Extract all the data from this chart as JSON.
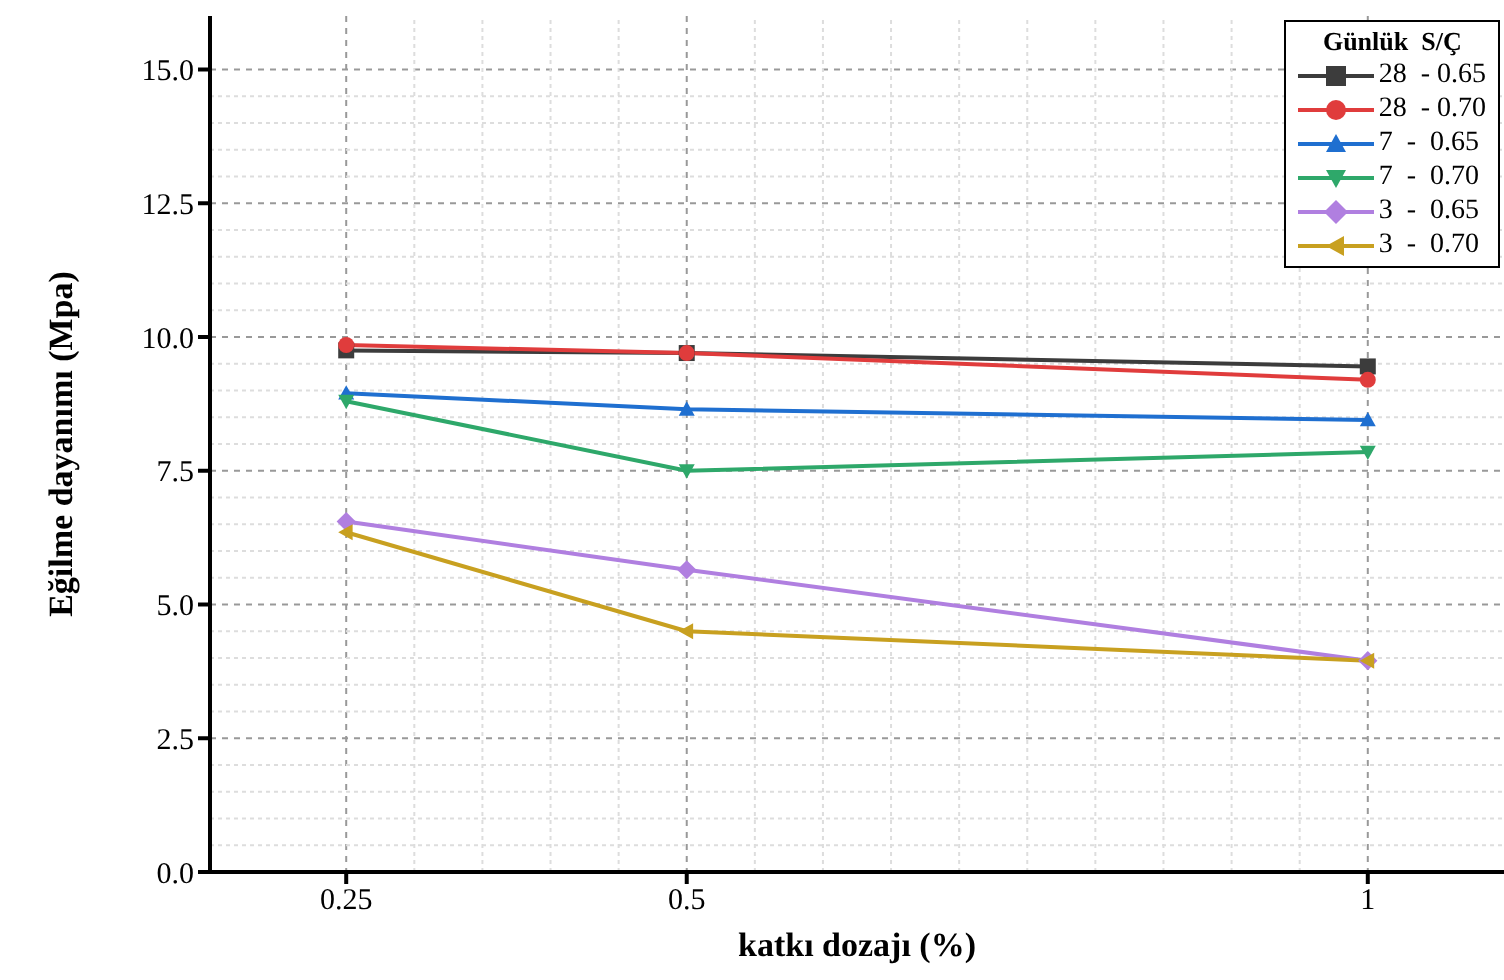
{
  "chart_data": {
    "type": "line",
    "xlabel": "katkı dozajı (%)",
    "ylabel": "Eğilme dayanımı (Mpa)",
    "legend_title": "Günlük  S/Ç",
    "x": [
      0.25,
      0.5,
      1
    ],
    "xlim": [
      0.15,
      1.1
    ],
    "xticks": [
      0.25,
      0.5,
      1
    ],
    "ylim": [
      0,
      16
    ],
    "yticks": [
      {
        "value": 0,
        "label": "0.0"
      },
      2.5,
      {
        "value": 5,
        "label": "5.0"
      },
      7.5,
      {
        "value": 10,
        "label": "10.0"
      },
      12.5,
      {
        "value": 15,
        "label": "15.0"
      }
    ],
    "grid": true,
    "legend": "top right",
    "line_style": "solid",
    "series": [
      {
        "name": "28  - 0.65",
        "color": "#3c3c3c",
        "marker": "square",
        "values": [
          9.75,
          9.7,
          9.45
        ]
      },
      {
        "name": "28  - 0.70",
        "color": "#e03c3c",
        "marker": "circle",
        "values": [
          9.85,
          9.7,
          9.2
        ]
      },
      {
        "name": "7  -  0.65",
        "color": "#1f6fd0",
        "marker": "triangle",
        "values": [
          8.95,
          8.65,
          8.45
        ]
      },
      {
        "name": "7  -  0.70",
        "color": "#2ea86a",
        "marker": "triangle-down",
        "values": [
          8.8,
          7.5,
          7.85
        ]
      },
      {
        "name": "3  -  0.65",
        "color": "#b07fe0",
        "marker": "diamond",
        "values": [
          6.55,
          5.65,
          3.95
        ]
      },
      {
        "name": "3  -  0.70",
        "color": "#c8a020",
        "marker": "triangle-left",
        "values": [
          6.35,
          4.5,
          3.95
        ]
      }
    ]
  }
}
